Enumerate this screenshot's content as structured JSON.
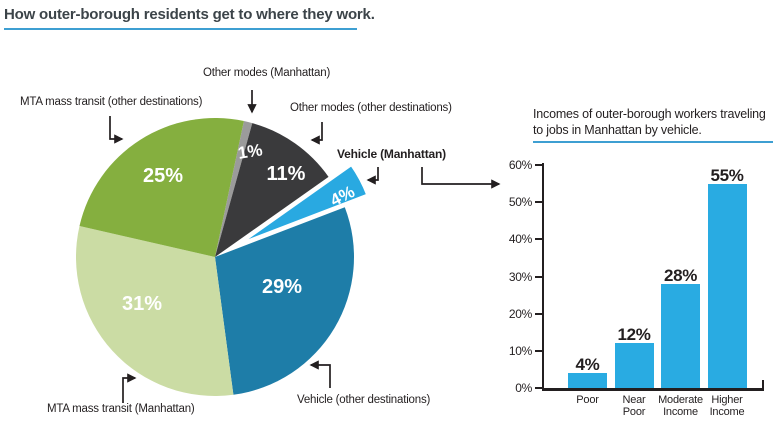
{
  "page_title": "How outer-borough residents get to where they work.",
  "colors": {
    "title_text": "#3c4449",
    "rule_blue": "#3e9fd2",
    "annotation_text": "#231f20",
    "pie_value_text": "#ffffff",
    "axis_black": "#231f20",
    "bar_blue": "#29abe2"
  },
  "annotations": [
    {
      "id": "mta-other-destinations",
      "text": "MTA mass transit (other destinations)"
    },
    {
      "id": "other-modes-manhattan",
      "text": "Other modes (Manhattan)"
    },
    {
      "id": "other-modes-other-destinations",
      "text": "Other modes (other destinations)"
    },
    {
      "id": "vehicle-manhattan",
      "text": "Vehicle (Manhattan)"
    },
    {
      "id": "mta-manhattan",
      "text": "MTA mass transit (Manhattan)"
    },
    {
      "id": "vehicle-other-destinations",
      "text": "Vehicle (other destinations)"
    }
  ],
  "chart_data": [
    {
      "type": "pie",
      "title": "How outer-borough residents get to where they work.",
      "unit": "%",
      "direction": "clockwise",
      "start_angle_deg_from_north": 12,
      "segments": [
        {
          "label": "Other modes (Manhattan)",
          "value": 1,
          "display": "1%",
          "color": "#9b9b9b",
          "exploded": false
        },
        {
          "label": "Other modes (other destinations)",
          "value": 11,
          "display": "11%",
          "color": "#3a3a3c",
          "exploded": false
        },
        {
          "label": "Vehicle (Manhattan)",
          "value": 4,
          "display": "4%",
          "color": "#29a9e1",
          "exploded": true
        },
        {
          "label": "Vehicle (other destinations)",
          "value": 29,
          "display": "29%",
          "color": "#1e7da8",
          "exploded": false
        },
        {
          "label": "MTA mass transit (Manhattan)",
          "value": 31,
          "display": "31%",
          "color": "#cbdca4",
          "exploded": false
        },
        {
          "label": "MTA mass transit (other destinations)",
          "value": 25,
          "display": "25%",
          "color": "#85af3f",
          "exploded": false
        }
      ]
    },
    {
      "type": "bar",
      "title": "Incomes of outer-borough workers traveling to jobs in Manhattan by vehicle.",
      "title_lines": [
        "Incomes of outer-borough workers traveling",
        "to jobs in Manhattan by vehicle."
      ],
      "categories": [
        "Poor",
        "Near Poor",
        "Moderate Income",
        "Higher Income"
      ],
      "category_lines": [
        [
          "Poor"
        ],
        [
          "Near",
          "Poor"
        ],
        [
          "Moderate",
          "Income"
        ],
        [
          "Higher",
          "Income"
        ]
      ],
      "values": [
        4,
        12,
        28,
        55
      ],
      "value_labels": [
        "4%",
        "12%",
        "28%",
        "55%"
      ],
      "xlabel": "",
      "ylabel": "",
      "ylim": [
        0,
        60
      ],
      "y_ticks": [
        0,
        10,
        20,
        30,
        40,
        50,
        60
      ],
      "y_tick_labels": [
        "0%",
        "10%",
        "20%",
        "30%",
        "40%",
        "50%",
        "60%"
      ],
      "bar_color": "#29abe2",
      "grid": false,
      "legend": null
    }
  ]
}
